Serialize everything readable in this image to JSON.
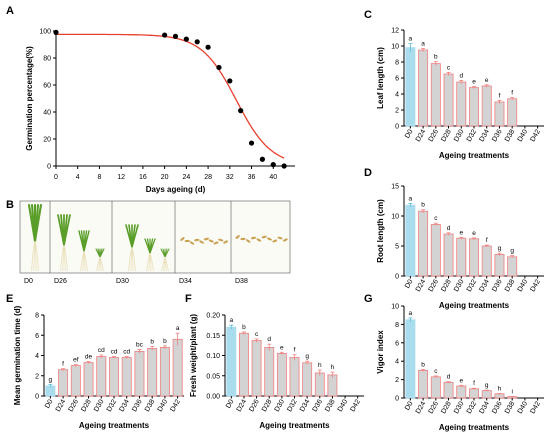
{
  "panel_labels": [
    "A",
    "B",
    "C",
    "D",
    "E",
    "F",
    "G"
  ],
  "colors": {
    "bar_fill": "#d3d3d3",
    "bar_stroke": "#f08080",
    "control_fill": "#a9ddee",
    "curve": "#e8402e",
    "points": "#000000",
    "seedling_green": "#5a9e2a",
    "seed_brown": "#c9a253",
    "photo_bg": "#fbfbf6"
  },
  "photo_labels": [
    "D0",
    "D26",
    "D30",
    "D34",
    "D38"
  ],
  "chart_data": [
    {
      "panel": "A",
      "type": "scatter",
      "xlabel": "Days ageing (d)",
      "ylabel": "Germination percentage(%)",
      "x_ticks": [
        "0",
        "4",
        "8",
        "12",
        "16",
        "20",
        "24",
        "28",
        "32",
        "36",
        "40"
      ],
      "y_ticks": [
        "0",
        "20",
        "40",
        "60",
        "80",
        "100"
      ],
      "xlim": [
        0,
        44
      ],
      "ylim": [
        0,
        100
      ],
      "points": [
        {
          "x": 0,
          "y": 99
        },
        {
          "x": 20,
          "y": 97
        },
        {
          "x": 22,
          "y": 96
        },
        {
          "x": 24,
          "y": 94
        },
        {
          "x": 26,
          "y": 92
        },
        {
          "x": 28,
          "y": 88
        },
        {
          "x": 30,
          "y": 73
        },
        {
          "x": 32,
          "y": 63
        },
        {
          "x": 34,
          "y": 41
        },
        {
          "x": 36,
          "y": 17
        },
        {
          "x": 38,
          "y": 5
        },
        {
          "x": 40,
          "y": 1
        },
        {
          "x": 42,
          "y": 0
        }
      ],
      "fit": {
        "top": 97.5,
        "x50": 33.2,
        "slope": 3.2
      }
    },
    {
      "panel": "C",
      "type": "bar",
      "categories": [
        "D0",
        "D24",
        "D26",
        "D28",
        "D30",
        "D32",
        "D34",
        "D36",
        "D38",
        "D40",
        "D42"
      ],
      "values": [
        9.8,
        9.5,
        7.8,
        6.5,
        5.5,
        4.8,
        5.0,
        3.0,
        3.4,
        0,
        0
      ],
      "errors": [
        0.5,
        0.2,
        0.25,
        0.2,
        0.2,
        0.15,
        0.15,
        0.2,
        0.15,
        0,
        0
      ],
      "labels": [
        "a",
        "a",
        "b",
        "c",
        "d",
        "e",
        "e",
        "f",
        "f",
        "",
        ""
      ],
      "xlabel": "Ageing treatments",
      "ylabel": "Leaf length (cm)",
      "ylim": [
        0,
        12
      ],
      "y_ticks": [
        "0",
        "2",
        "4",
        "6",
        "8",
        "10",
        "12"
      ]
    },
    {
      "panel": "D",
      "type": "bar",
      "categories": [
        "D0",
        "D24",
        "D26",
        "D28",
        "D30",
        "D32",
        "D34",
        "D36",
        "D38",
        "D40",
        "D42"
      ],
      "values": [
        11.8,
        10.8,
        8.6,
        7.0,
        6.3,
        6.2,
        5.0,
        3.6,
        3.2,
        0,
        0
      ],
      "errors": [
        0.3,
        0.25,
        0.2,
        0.2,
        0.15,
        0.15,
        0.15,
        0.2,
        0.2,
        0,
        0
      ],
      "labels": [
        "a",
        "b",
        "c",
        "d",
        "e",
        "e",
        "f",
        "g",
        "g",
        "",
        ""
      ],
      "xlabel": "Ageing treatments",
      "ylabel": "Root length (cm)",
      "ylim": [
        0,
        15
      ],
      "y_ticks": [
        "0",
        "5",
        "10",
        "15"
      ]
    },
    {
      "panel": "E",
      "type": "bar",
      "categories": [
        "D0",
        "D24",
        "D26",
        "D28",
        "D30",
        "D32",
        "D34",
        "D36",
        "D38",
        "D40",
        "D42"
      ],
      "values": [
        1.0,
        2.6,
        3.0,
        3.3,
        3.9,
        3.8,
        3.8,
        4.4,
        4.7,
        4.8,
        5.6
      ],
      "errors": [
        0.15,
        0.1,
        0.1,
        0.1,
        0.15,
        0.1,
        0.1,
        0.2,
        0.2,
        0.15,
        0.6
      ],
      "labels": [
        "g",
        "f",
        "ef",
        "de",
        "cd",
        "cd",
        "cd",
        "bc",
        "b",
        "b",
        "a"
      ],
      "xlabel": "Ageing treatments",
      "ylabel": "Mean germination time (d)",
      "ylim": [
        0,
        8
      ],
      "y_ticks": [
        "0",
        "2",
        "4",
        "6",
        "8"
      ]
    },
    {
      "panel": "F",
      "type": "bar",
      "categories": [
        "D0",
        "D24",
        "D26",
        "D28",
        "D30",
        "D32",
        "D34",
        "D36",
        "D38",
        "D40",
        "D42"
      ],
      "values": [
        0.17,
        0.155,
        0.137,
        0.12,
        0.105,
        0.095,
        0.082,
        0.057,
        0.052,
        0,
        0
      ],
      "errors": [
        0.005,
        0.003,
        0.004,
        0.008,
        0.003,
        0.007,
        0.004,
        0.007,
        0.007,
        0,
        0
      ],
      "labels": [
        "a",
        "b",
        "c",
        "d",
        "e",
        "f",
        "g",
        "h",
        "h",
        "",
        ""
      ],
      "xlabel": "Ageing treatments",
      "ylabel": "Fresh weight/plant (g)",
      "ylim": [
        0,
        0.2
      ],
      "y_ticks": [
        "0.00",
        "0.05",
        "0.10",
        "0.15",
        "0.20"
      ]
    },
    {
      "panel": "G",
      "type": "bar",
      "categories": [
        "D0",
        "D24",
        "D26",
        "D28",
        "D30",
        "D32",
        "D34",
        "D36",
        "D38",
        "D40",
        "D42"
      ],
      "values": [
        8.5,
        3.0,
        2.3,
        1.7,
        1.3,
        1.0,
        0.8,
        0.45,
        0.15,
        0,
        0
      ],
      "errors": [
        0.2,
        0.1,
        0.1,
        0.08,
        0.08,
        0.06,
        0.05,
        0.04,
        0.03,
        0,
        0
      ],
      "labels": [
        "a",
        "b",
        "c",
        "d",
        "e",
        "f",
        "g",
        "h",
        "i",
        "",
        ""
      ],
      "xlabel": "Ageing treatments",
      "ylabel": "Vigor index",
      "ylim": [
        0,
        10
      ],
      "y_ticks": [
        "0",
        "2",
        "4",
        "6",
        "8",
        "10"
      ]
    }
  ]
}
